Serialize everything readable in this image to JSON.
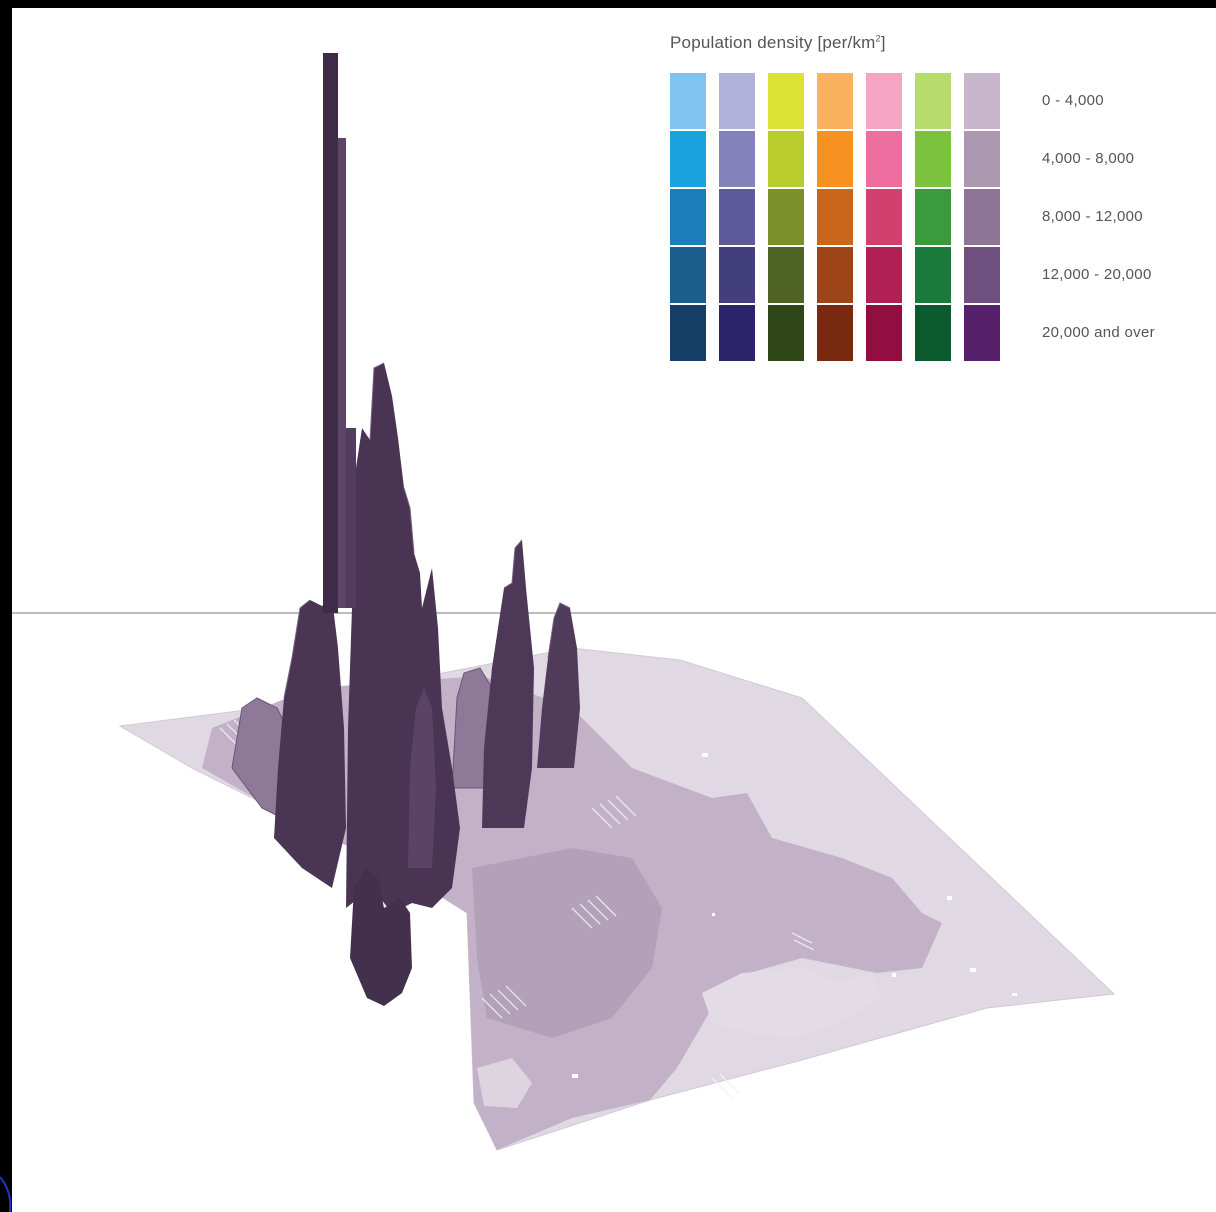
{
  "legend": {
    "title": "Population density [per/km",
    "title_sup": "2",
    "title_tail": "]",
    "classes": [
      {
        "label": "0 - 4,000"
      },
      {
        "label": "4,000 - 8,000"
      },
      {
        "label": "8,000 - 12,000"
      },
      {
        "label": "12,000 - 20,000"
      },
      {
        "label": "20,000 and over"
      }
    ],
    "palettes": [
      [
        "#7fc4ee",
        "#1aa2de",
        "#1a7fb8",
        "#1a5e8c",
        "#143e66"
      ],
      [
        "#b2b1dc",
        "#8482bb",
        "#5f5b9b",
        "#423f7c",
        "#2c2468"
      ],
      [
        "#dde234",
        "#b9cc2e",
        "#7d8f2a",
        "#4f6424",
        "#2f4618"
      ],
      [
        "#fbb25c",
        "#f79220",
        "#c9661c",
        "#9d4418",
        "#79290f"
      ],
      [
        "#f5a4c4",
        "#ee6ea0",
        "#d3406f",
        "#b02054",
        "#920e40"
      ],
      [
        "#b7db6c",
        "#7bc23e",
        "#3a9a3e",
        "#1a7a3c",
        "#0b5a2e"
      ],
      [
        "#c8b6cc",
        "#ad98b2",
        "#8e7597",
        "#6f4f7f",
        "#56216a"
      ]
    ]
  },
  "colors": {
    "frame": "#000000",
    "paper": "#ffffff",
    "ground_light": "#e1dae4",
    "ground_mid": "#c1b0c6",
    "ground_dark": "#a994ae",
    "tower_dark": "#46324f",
    "tower_mid": "#5c4466",
    "tower_light": "#7d6585",
    "horizon_line": "#777777"
  }
}
